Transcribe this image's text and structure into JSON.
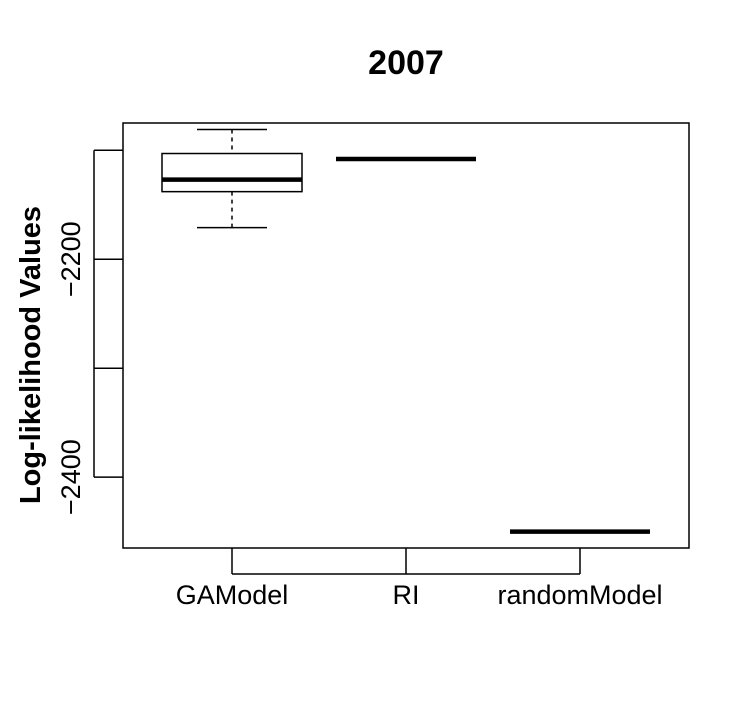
{
  "chart_data": {
    "type": "box",
    "title": "2007",
    "xlabel": "",
    "ylabel": "Log-likelihood Values",
    "categories": [
      "GAModel",
      "RI",
      "randomModel"
    ],
    "boxes": [
      {
        "category": "GAModel",
        "min": -2171,
        "q1": -2138,
        "median": -2127,
        "q3": -2103,
        "max": -2081
      },
      {
        "category": "RI",
        "min": -2108,
        "q1": -2108,
        "median": -2108,
        "q3": -2108,
        "max": -2108
      },
      {
        "category": "randomModel",
        "min": -2450,
        "q1": -2450,
        "median": -2450,
        "q3": -2450,
        "max": -2450
      }
    ],
    "yticks": [
      "-2200",
      "-2400"
    ],
    "y_tick_values": [
      -2100,
      -2200,
      -2300,
      -2400
    ],
    "ylim": [
      -2465,
      -2075
    ],
    "grid": false,
    "legend": "none"
  }
}
